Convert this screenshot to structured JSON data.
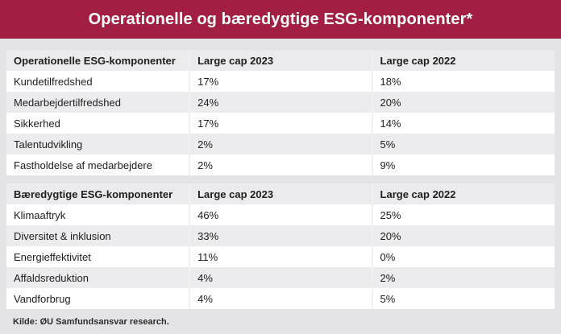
{
  "title": "Operationelle og bæredygtige ESG-komponenter*",
  "footer": "Kilde: ØU Samfundsansvar research.",
  "colors": {
    "banner_red": "#a21e43",
    "page_bg": "#e4e4e6",
    "header_row_bg": "#ebebed",
    "alt_row_bg": "#ececee",
    "white_row_bg": "#ffffff",
    "divider": "#f1f1f2",
    "text": "#202020",
    "title_text": "#ffffff"
  },
  "sections": [
    {
      "id": "operational",
      "header": [
        "Operationelle ESG-komponenter",
        "Large cap 2023",
        "Large cap 2022"
      ],
      "rows": [
        [
          "Kundetilfredshed",
          "17%",
          "18%"
        ],
        [
          "Medarbejdertilfredshed",
          "24%",
          "20%"
        ],
        [
          "Sikkerhed",
          "17%",
          "14%"
        ],
        [
          "Talentudvikling",
          "2%",
          "5%"
        ],
        [
          "Fastholdelse af medarbejdere",
          "2%",
          "9%"
        ]
      ]
    },
    {
      "id": "sustainable",
      "header": [
        "Bæredygtige ESG-komponenter",
        "Large cap 2023",
        "Large cap 2022"
      ],
      "rows": [
        [
          "Klimaaftryk",
          "46%",
          "25%"
        ],
        [
          "Diversitet & inklusion",
          "33%",
          "20%"
        ],
        [
          "Energieffektivitet",
          "11%",
          "0%"
        ],
        [
          "Affaldsreduktion",
          "4%",
          "2%"
        ],
        [
          "Vandforbrug",
          "4%",
          "5%"
        ]
      ]
    }
  ],
  "chart_data": {
    "type": "table",
    "title": "Operationelle og bæredygtige ESG-komponenter*",
    "source": "Kilde: ØU Samfundsansvar research.",
    "tables": [
      {
        "columns": [
          "Operationelle ESG-komponenter",
          "Large cap 2023",
          "Large cap 2022"
        ],
        "rows": [
          {
            "label": "Kundetilfredshed",
            "large_cap_2023": 17,
            "large_cap_2022": 18
          },
          {
            "label": "Medarbejdertilfredshed",
            "large_cap_2023": 24,
            "large_cap_2022": 20
          },
          {
            "label": "Sikkerhed",
            "large_cap_2023": 17,
            "large_cap_2022": 14
          },
          {
            "label": "Talentudvikling",
            "large_cap_2023": 2,
            "large_cap_2022": 5
          },
          {
            "label": "Fastholdelse af medarbejdere",
            "large_cap_2023": 2,
            "large_cap_2022": 9
          }
        ],
        "unit": "%"
      },
      {
        "columns": [
          "Bæredygtige ESG-komponenter",
          "Large cap 2023",
          "Large cap 2022"
        ],
        "rows": [
          {
            "label": "Klimaaftryk",
            "large_cap_2023": 46,
            "large_cap_2022": 25
          },
          {
            "label": "Diversitet & inklusion",
            "large_cap_2023": 33,
            "large_cap_2022": 20
          },
          {
            "label": "Energieffektivitet",
            "large_cap_2023": 11,
            "large_cap_2022": 0
          },
          {
            "label": "Affaldsreduktion",
            "large_cap_2023": 4,
            "large_cap_2022": 2
          },
          {
            "label": "Vandforbrug",
            "large_cap_2023": 4,
            "large_cap_2022": 5
          }
        ],
        "unit": "%"
      }
    ]
  }
}
